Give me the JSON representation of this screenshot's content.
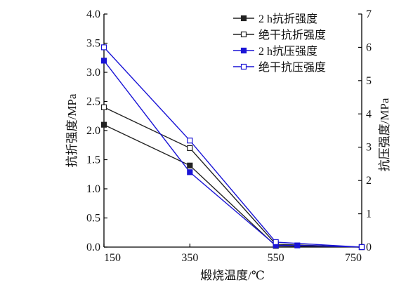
{
  "chart_data": {
    "type": "line",
    "xlabel": "煅烧温度/℃",
    "ylabel_left": "抗折强度/MPa",
    "ylabel_right": "抗压强度/MPa",
    "x_ticks": [
      150,
      350,
      550,
      750
    ],
    "x_range": [
      150,
      750
    ],
    "y_left_range": [
      0,
      4
    ],
    "y_left_ticks": [
      "0.0",
      "0.5",
      "1.0",
      "1.5",
      "2.0",
      "2.5",
      "3.0",
      "3.5",
      "4.0"
    ],
    "y_right_range": [
      0,
      7
    ],
    "y_right_ticks": [
      "0",
      "1",
      "2",
      "3",
      "4",
      "5",
      "6",
      "7"
    ],
    "legend_position": "top-right",
    "grid": false,
    "series": [
      {
        "name": "2 h抗折强度",
        "axis": "left",
        "color": "#222222",
        "marker": "filled-square",
        "x": [
          150,
          350,
          550,
          750
        ],
        "y": [
          2.1,
          1.4,
          0.02,
          0.0
        ]
      },
      {
        "name": "绝干抗折强度",
        "axis": "left",
        "color": "#222222",
        "marker": "open-square",
        "x": [
          150,
          350,
          550,
          750
        ],
        "y": [
          2.4,
          1.7,
          0.05,
          0.0
        ]
      },
      {
        "name": "2 h抗压强度",
        "axis": "right",
        "color": "#1a14d6",
        "marker": "filled-square",
        "x": [
          150,
          350,
          550,
          600,
          750
        ],
        "y": [
          5.6,
          2.25,
          0.05,
          0.05,
          0.0
        ]
      },
      {
        "name": "绝干抗压强度",
        "axis": "right",
        "color": "#1a14d6",
        "marker": "open-square",
        "x": [
          150,
          350,
          550,
          750
        ],
        "y": [
          6.0,
          3.2,
          0.15,
          0.0
        ]
      }
    ]
  }
}
